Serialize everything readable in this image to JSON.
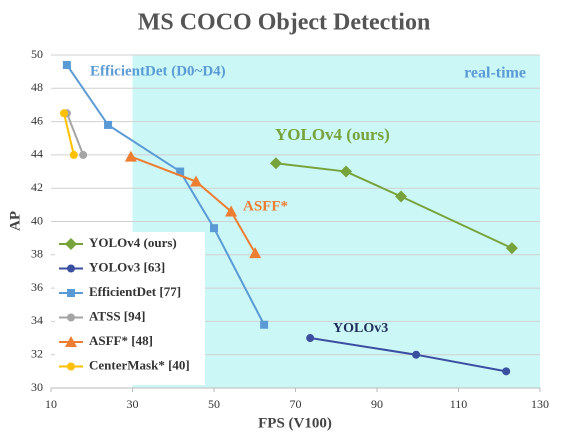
{
  "chart_data": {
    "type": "line",
    "title": "MS COCO Object Detection",
    "x_label": "FPS (V100)",
    "y_label": "AP",
    "xlim": [
      10,
      130
    ],
    "ylim": [
      30,
      50
    ],
    "xticks": [
      10,
      30,
      50,
      70,
      90,
      110,
      130
    ],
    "yticks": [
      30,
      32,
      34,
      36,
      38,
      40,
      42,
      44,
      46,
      48,
      50
    ],
    "grid": true,
    "legend": "lower-left",
    "highlight_xlim": [
      30,
      130
    ],
    "highlight_color": "#ccf7f7",
    "annotations": [
      "EfficientDet (D0~D4)",
      "real-time",
      "YOLOv4 (ours)",
      "ASFF*",
      "YOLOv3"
    ],
    "series": [
      {
        "name": "YOLOv4 (ours)",
        "color": "#77a33c",
        "marker": "diamond",
        "x": [
          65.2,
          82.4,
          95.9,
          123.1
        ],
        "y": [
          43.5,
          43.0,
          41.5,
          38.4
        ]
      },
      {
        "name": "YOLOv3 [63]",
        "color": "#3a4fa0",
        "marker": "circle",
        "x": [
          73.6,
          99.6,
          121.7
        ],
        "y": [
          33.0,
          32.0,
          31.0
        ]
      },
      {
        "name": "EfficientDet [77]",
        "color": "#5b9bd5",
        "marker": "square",
        "x": [
          13.9,
          24.0,
          41.7,
          50.0,
          62.3
        ],
        "y": [
          49.4,
          45.8,
          43.0,
          39.6,
          33.8
        ]
      },
      {
        "name": "ATSS [94]",
        "color": "#a5a5a5",
        "marker": "circle",
        "x": [
          13.9,
          17.9
        ],
        "y": [
          46.5,
          44.0
        ]
      },
      {
        "name": "ASFF* [48]",
        "color": "#ed7d31",
        "marker": "triangle",
        "x": [
          29.6,
          45.6,
          54.2,
          60.1
        ],
        "y": [
          43.9,
          42.4,
          40.6,
          38.1
        ]
      },
      {
        "name": "CenterMask* [40]",
        "color": "#ffc000",
        "marker": "circle",
        "x": [
          13.2,
          15.6
        ],
        "y": [
          46.5,
          44.0
        ]
      }
    ]
  }
}
